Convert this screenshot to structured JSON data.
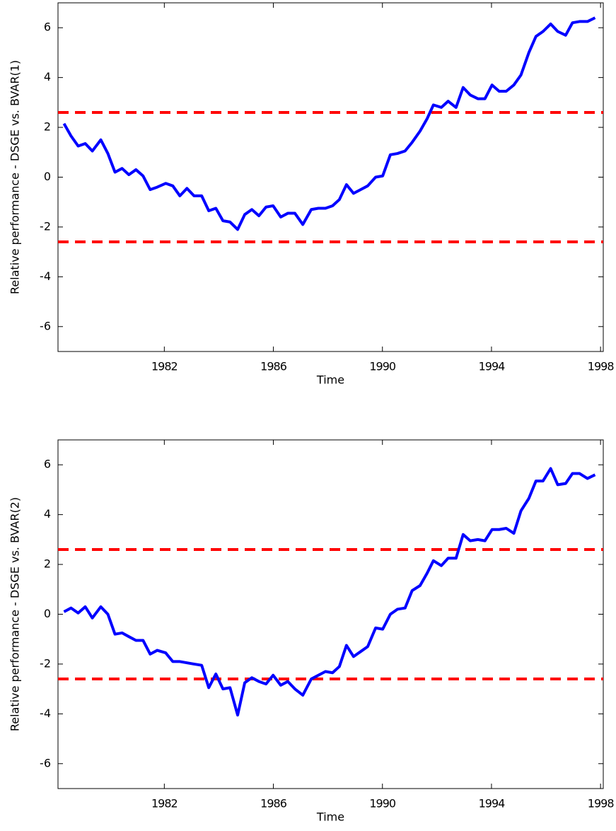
{
  "chart_data": [
    {
      "type": "line",
      "ylabel": "Relative performance - DSGE vs. BVAR(1)",
      "xlabel": "Time",
      "x": [
        1978.32,
        1978.58,
        1978.84,
        1979.1,
        1979.36,
        1979.67,
        1979.93,
        1980.19,
        1980.45,
        1980.7,
        1980.96,
        1981.22,
        1981.48,
        1981.74,
        1982.05,
        1982.31,
        1982.57,
        1982.83,
        1983.09,
        1983.37,
        1983.63,
        1983.89,
        1984.15,
        1984.41,
        1984.69,
        1984.95,
        1985.21,
        1985.47,
        1985.73,
        1985.99,
        1986.27,
        1986.53,
        1986.79,
        1987.08,
        1987.39,
        1987.65,
        1987.91,
        1988.17,
        1988.42,
        1988.68,
        1988.94,
        1989.2,
        1989.46,
        1989.75,
        1990.01,
        1990.29,
        1990.55,
        1990.83,
        1991.09,
        1991.38,
        1991.64,
        1991.87,
        1992.16,
        1992.41,
        1992.7,
        1992.96,
        1993.22,
        1993.5,
        1993.76,
        1994.02,
        1994.28,
        1994.54,
        1994.82,
        1995.08,
        1995.37,
        1995.63,
        1995.89,
        1996.17,
        1996.43,
        1996.72,
        1996.97,
        1997.23,
        1997.52,
        1997.8
      ],
      "values": [
        2.15,
        1.65,
        1.25,
        1.35,
        1.05,
        1.5,
        0.95,
        0.2,
        0.35,
        0.1,
        0.3,
        0.05,
        -0.5,
        -0.4,
        -0.25,
        -0.35,
        -0.75,
        -0.45,
        -0.75,
        -0.75,
        -1.35,
        -1.25,
        -1.75,
        -1.8,
        -2.1,
        -1.5,
        -1.3,
        -1.55,
        -1.2,
        -1.15,
        -1.6,
        -1.45,
        -1.45,
        -1.9,
        -1.3,
        -1.25,
        -1.25,
        -1.15,
        -0.9,
        -0.3,
        -0.65,
        -0.5,
        -0.35,
        0.0,
        0.05,
        0.9,
        0.95,
        1.05,
        1.4,
        1.85,
        2.35,
        2.9,
        2.8,
        3.05,
        2.8,
        3.6,
        3.3,
        3.15,
        3.15,
        3.7,
        3.45,
        3.45,
        3.7,
        4.1,
        5.0,
        5.65,
        5.85,
        6.15,
        5.85,
        5.7,
        6.2,
        6.25,
        6.25,
        6.4
      ],
      "color": "#0000ff",
      "hlines": {
        "values": [
          2.6,
          -2.6
        ],
        "color": "#ff0000",
        "style": "dashed"
      },
      "xlim": [
        1978.1,
        1998.1
      ],
      "xticks": [
        1982,
        1986,
        1990,
        1994,
        1998
      ],
      "ylim": [
        -7,
        7
      ],
      "yticks": [
        -6,
        -4,
        -2,
        0,
        2,
        4,
        6
      ],
      "grid": false
    },
    {
      "type": "line",
      "ylabel": "Relative performance - DSGE vs. BVAR(2)",
      "xlabel": "Time",
      "x": [
        1978.32,
        1978.58,
        1978.84,
        1979.1,
        1979.36,
        1979.67,
        1979.93,
        1980.19,
        1980.45,
        1980.7,
        1980.96,
        1981.22,
        1981.48,
        1981.74,
        1982.05,
        1982.31,
        1982.57,
        1982.83,
        1983.09,
        1983.37,
        1983.63,
        1983.89,
        1984.15,
        1984.41,
        1984.69,
        1984.95,
        1985.21,
        1985.47,
        1985.73,
        1985.99,
        1986.27,
        1986.53,
        1986.79,
        1987.08,
        1987.39,
        1987.65,
        1987.91,
        1988.17,
        1988.42,
        1988.68,
        1988.94,
        1989.2,
        1989.46,
        1989.75,
        1990.01,
        1990.29,
        1990.55,
        1990.83,
        1991.09,
        1991.38,
        1991.64,
        1991.87,
        1992.16,
        1992.41,
        1992.7,
        1992.96,
        1993.22,
        1993.5,
        1993.76,
        1994.02,
        1994.28,
        1994.54,
        1994.82,
        1995.08,
        1995.37,
        1995.63,
        1995.89,
        1996.17,
        1996.43,
        1996.72,
        1996.97,
        1997.23,
        1997.52,
        1997.8
      ],
      "values": [
        0.1,
        0.25,
        0.05,
        0.3,
        -0.15,
        0.3,
        0.0,
        -0.8,
        -0.75,
        -0.9,
        -1.05,
        -1.05,
        -1.6,
        -1.45,
        -1.55,
        -1.9,
        -1.9,
        -1.95,
        -2.0,
        -2.05,
        -2.95,
        -2.4,
        -3.0,
        -2.95,
        -4.05,
        -2.75,
        -2.55,
        -2.7,
        -2.8,
        -2.45,
        -2.85,
        -2.7,
        -3.0,
        -3.25,
        -2.6,
        -2.45,
        -2.3,
        -2.35,
        -2.1,
        -1.25,
        -1.7,
        -1.5,
        -1.3,
        -0.55,
        -0.6,
        0.0,
        0.2,
        0.25,
        0.95,
        1.15,
        1.65,
        2.15,
        1.95,
        2.25,
        2.25,
        3.2,
        2.95,
        3.0,
        2.95,
        3.4,
        3.4,
        3.45,
        3.25,
        4.15,
        4.65,
        5.35,
        5.35,
        5.85,
        5.2,
        5.25,
        5.65,
        5.65,
        5.45,
        5.6
      ],
      "color": "#0000ff",
      "hlines": {
        "values": [
          2.6,
          -2.6
        ],
        "color": "#ff0000",
        "style": "dashed"
      },
      "xlim": [
        1978.1,
        1998.1
      ],
      "xticks": [
        1982,
        1986,
        1990,
        1994,
        1998
      ],
      "ylim": [
        -7,
        7
      ],
      "yticks": [
        -6,
        -4,
        -2,
        0,
        2,
        4,
        6
      ],
      "grid": false
    }
  ]
}
